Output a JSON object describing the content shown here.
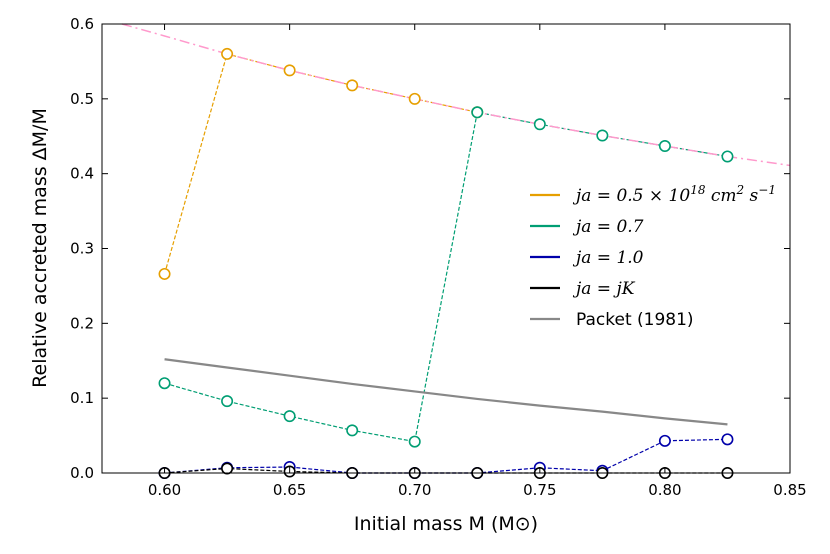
{
  "chart_data": {
    "type": "scatter",
    "xlabel": "Initial mass M (M⊙)",
    "ylabel": "Relative accreted mass ΔM/M",
    "xlim": [
      0.575,
      0.85
    ],
    "ylim": [
      0.0,
      0.6
    ],
    "xticks": [
      "0.60",
      "0.65",
      "0.70",
      "0.75",
      "0.80",
      "0.85"
    ],
    "xtick_values": [
      0.6,
      0.65,
      0.7,
      0.75,
      0.8,
      0.85
    ],
    "yticks": [
      "0.0",
      "0.1",
      "0.2",
      "0.3",
      "0.4",
      "0.5",
      "0.6"
    ],
    "ytick_values": [
      0.0,
      0.1,
      0.2,
      0.3,
      0.4,
      0.5,
      0.6
    ],
    "grid": false,
    "legend_position": "right",
    "series": [
      {
        "name": "ja = 0.5 × 10^18 cm² s⁻¹",
        "color": "#E69F00",
        "style": "dashed-markers",
        "x": [
          0.6,
          0.625,
          0.65,
          0.675,
          0.7,
          0.725
        ],
        "y": [
          0.266,
          0.56,
          0.538,
          0.518,
          0.5,
          0.482
        ]
      },
      {
        "name": "ja = 0.7",
        "color": "#009E73",
        "style": "dashed-markers",
        "x": [
          0.6,
          0.625,
          0.65,
          0.675,
          0.7,
          0.725,
          0.75,
          0.775,
          0.8,
          0.825
        ],
        "y": [
          0.12,
          0.096,
          0.076,
          0.057,
          0.042,
          0.482,
          0.466,
          0.451,
          0.437,
          0.423
        ]
      },
      {
        "name": "ja = 1.0",
        "color": "#0000AA",
        "style": "dashed-markers",
        "x": [
          0.6,
          0.625,
          0.65,
          0.675,
          0.7,
          0.725,
          0.75,
          0.775,
          0.8,
          0.825
        ],
        "y": [
          0.0,
          0.007,
          0.008,
          0.0,
          0.0,
          0.0,
          0.007,
          0.003,
          0.043,
          0.045
        ]
      },
      {
        "name": "ja = jK",
        "color": "#000000",
        "style": "dashed-markers",
        "x": [
          0.6,
          0.625,
          0.65,
          0.675,
          0.7,
          0.725,
          0.75,
          0.775,
          0.8,
          0.825
        ],
        "y": [
          0.0,
          0.006,
          0.002,
          0.0,
          0.0,
          0.0,
          0.0,
          0.0,
          0.0,
          0.0
        ]
      },
      {
        "name": "Packet (1981)",
        "color": "#888888",
        "style": "solid",
        "x": [
          0.6,
          0.625,
          0.65,
          0.675,
          0.7,
          0.725,
          0.75,
          0.775,
          0.8,
          0.825
        ],
        "y": [
          0.152,
          0.141,
          0.13,
          0.119,
          0.109,
          0.099,
          0.09,
          0.082,
          0.073,
          0.065
        ]
      },
      {
        "name": "",
        "color": "#FF99CC",
        "style": "dashdot",
        "x": [
          0.583,
          0.6,
          0.625,
          0.65,
          0.675,
          0.7,
          0.725,
          0.75,
          0.775,
          0.8,
          0.825,
          0.85
        ],
        "y": [
          0.6,
          0.584,
          0.56,
          0.538,
          0.518,
          0.5,
          0.482,
          0.466,
          0.451,
          0.437,
          0.423,
          0.411
        ]
      }
    ],
    "legend": [
      {
        "label_prefix": "ja = 0.5 × 10",
        "sup1": "18",
        "label_mid": " cm",
        "sup2": "2",
        "label_mid2": " s",
        "sup3": "−1",
        "color": "#E69F00",
        "math": true
      },
      {
        "label": "ja = 0.7",
        "color": "#009E73",
        "math": true
      },
      {
        "label": "ja = 1.0",
        "color": "#0000AA",
        "math": true
      },
      {
        "label": "ja = jK",
        "color": "#000000",
        "math": true
      },
      {
        "label": "Packet (1981)",
        "color": "#888888",
        "math": false
      }
    ]
  }
}
